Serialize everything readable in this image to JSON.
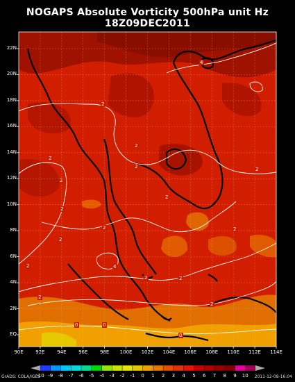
{
  "title": {
    "line1": "NOGAPS Absolute Vorticity 500hPa unit Hz",
    "line2": "18Z09DEC2011"
  },
  "lat_labels": [
    "22N",
    "20N",
    "18N",
    "16N",
    "14N",
    "12N",
    "10N",
    "8N",
    "6N",
    "4N",
    "2N",
    "EQ"
  ],
  "lon_labels": [
    "90E",
    "92E",
    "94E",
    "96E",
    "98E",
    "100E",
    "102E",
    "104E",
    "106E",
    "108E",
    "110E",
    "112E",
    "114E"
  ],
  "contour_labels": [
    "4",
    "2",
    "2",
    "2",
    "2",
    "2",
    "2",
    "2",
    "2",
    "2",
    "2",
    "2",
    "2",
    "2",
    "4",
    "2",
    "2",
    "2",
    "0",
    "0",
    "0"
  ],
  "legend": {
    "values": [
      "-10",
      "-9",
      "-8",
      "-7",
      "-6",
      "-5",
      "-4",
      "-3",
      "-2",
      "-1",
      "0",
      "1",
      "2",
      "3",
      "4",
      "5",
      "6",
      "7",
      "8",
      "9",
      "10"
    ],
    "colors": [
      "#1e3cff",
      "#0096ff",
      "#00c8ff",
      "#00dcdc",
      "#00dc96",
      "#00dc00",
      "#96e600",
      "#c8e600",
      "#e6e600",
      "#e6c800",
      "#f0a000",
      "#e67800",
      "#e65000",
      "#e63200",
      "#e61400",
      "#c80000",
      "#b40000",
      "#960000",
      "#820000",
      "#e6009c",
      "#a0005a"
    ]
  },
  "footer": {
    "left": "GrADS: COLA/IGES",
    "right": "2011-12-08-16:04"
  }
}
